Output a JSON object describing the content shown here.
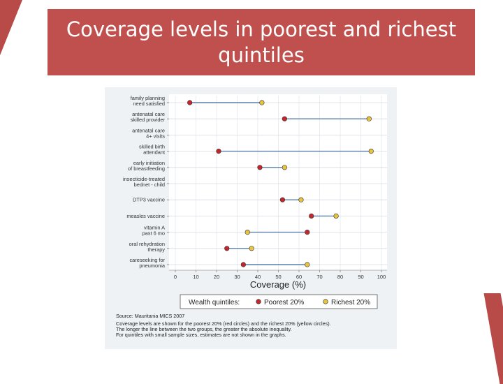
{
  "slide": {
    "title": "Coverage levels in poorest and richest quintiles"
  },
  "colors": {
    "accent": "#c0504d",
    "poorest": "#c8242c",
    "richest": "#e8c33c",
    "line": "#5a7fa8"
  },
  "chart_data": {
    "type": "dumbbell",
    "categories": [
      [
        "family planning",
        "need satisfied"
      ],
      [
        "antenatal care",
        "skilled provider"
      ],
      [
        "antenatal care",
        "4+ visits"
      ],
      [
        "skilled birth",
        "attendant"
      ],
      [
        "early initiation",
        "of breastfeeding"
      ],
      [
        "insecticide-treated",
        "bednet - child"
      ],
      [
        "DTP3 vaccine"
      ],
      [
        "measles vaccine"
      ],
      [
        "vitamin A",
        "past 6 mo"
      ],
      [
        "oral rehydration",
        "therapy"
      ],
      [
        "careseeking for",
        "pneumonia"
      ]
    ],
    "series": [
      {
        "name": "Poorest 20%",
        "values": [
          7,
          53,
          null,
          21,
          41,
          null,
          52,
          66,
          64,
          25,
          33
        ]
      },
      {
        "name": "Richest 20%",
        "values": [
          42,
          94,
          null,
          95,
          53,
          null,
          61,
          78,
          35,
          37,
          64
        ]
      }
    ],
    "xlabel": "Coverage (%)",
    "xlim": [
      0,
      100
    ],
    "xticks": [
      0,
      10,
      20,
      30,
      40,
      50,
      60,
      70,
      80,
      90,
      100
    ],
    "legend_title": "Wealth quintiles:",
    "legend_position": "bottom",
    "notes": [
      "Source: Mauritania MICS 2007",
      "Coverage levels are shown for the poorest 20% (red circles) and the richest 20% (yellow circles).",
      "The longer the line between the two groups, the greater the absolute inequality.",
      "For quintiles with small sample sizes, estimates are not shown in the graphs."
    ]
  }
}
